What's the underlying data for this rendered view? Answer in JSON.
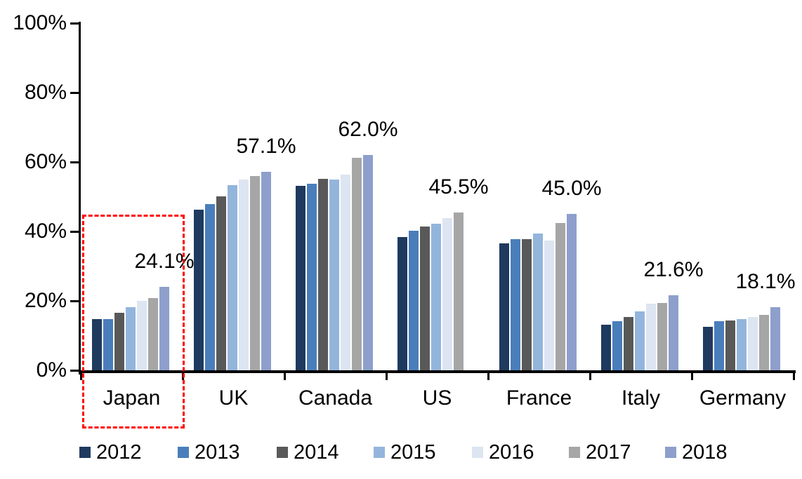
{
  "chart_data": {
    "type": "bar",
    "title": "",
    "xlabel": "",
    "ylabel": "",
    "categories": [
      "Japan",
      "UK",
      "Canada",
      "US",
      "France",
      "Italy",
      "Germany"
    ],
    "series": [
      {
        "name": "2012",
        "color": "#1F3A5F",
        "values": [
          14.7,
          46.3,
          53.1,
          38.4,
          36.6,
          13.2,
          12.6
        ]
      },
      {
        "name": "2013",
        "color": "#4A7EBB",
        "values": [
          14.8,
          47.9,
          53.7,
          40.2,
          37.7,
          14.2,
          14.2
        ]
      },
      {
        "name": "2014",
        "color": "#595959",
        "values": [
          16.6,
          50.1,
          55.1,
          41.4,
          37.7,
          15.4,
          14.4
        ]
      },
      {
        "name": "2015",
        "color": "#93B5DC",
        "values": [
          18.1,
          53.4,
          54.9,
          42.3,
          39.3,
          16.9,
          14.8
        ]
      },
      {
        "name": "2016",
        "color": "#DCE5F1",
        "values": [
          20.0,
          55.0,
          56.4,
          43.8,
          37.3,
          19.1,
          15.4
        ]
      },
      {
        "name": "2017",
        "color": "#A6A6A6",
        "values": [
          20.9,
          56.0,
          61.3,
          45.5,
          42.4,
          19.4,
          15.9
        ]
      },
      {
        "name": "2018",
        "color": "#8E9FCC",
        "values": [
          24.1,
          57.1,
          62.0,
          null,
          45.0,
          21.6,
          18.1
        ]
      }
    ],
    "data_labels": [
      "24.1%",
      "57.1%",
      "62.0%",
      "45.5%",
      "45.0%",
      "21.6%",
      "18.1%"
    ],
    "ylim": [
      0,
      100
    ],
    "yticks": [
      0,
      20,
      40,
      60,
      80,
      100
    ],
    "ytick_labels": [
      "0%",
      "20%",
      "40%",
      "60%",
      "80%",
      "100%"
    ],
    "grid": false,
    "legend_position": "bottom",
    "legend_labels": [
      "2012",
      "2013",
      "2014",
      "2015",
      "2016",
      "2017",
      "2018"
    ],
    "annotations": [
      {
        "type": "highlight-box",
        "category": "Japan",
        "style": "dashed",
        "color": "#FF0000"
      }
    ]
  },
  "colors": {
    "axis": "#000000",
    "text": "#000000",
    "highlight": "#FF0000",
    "background": "#FFFFFF"
  }
}
